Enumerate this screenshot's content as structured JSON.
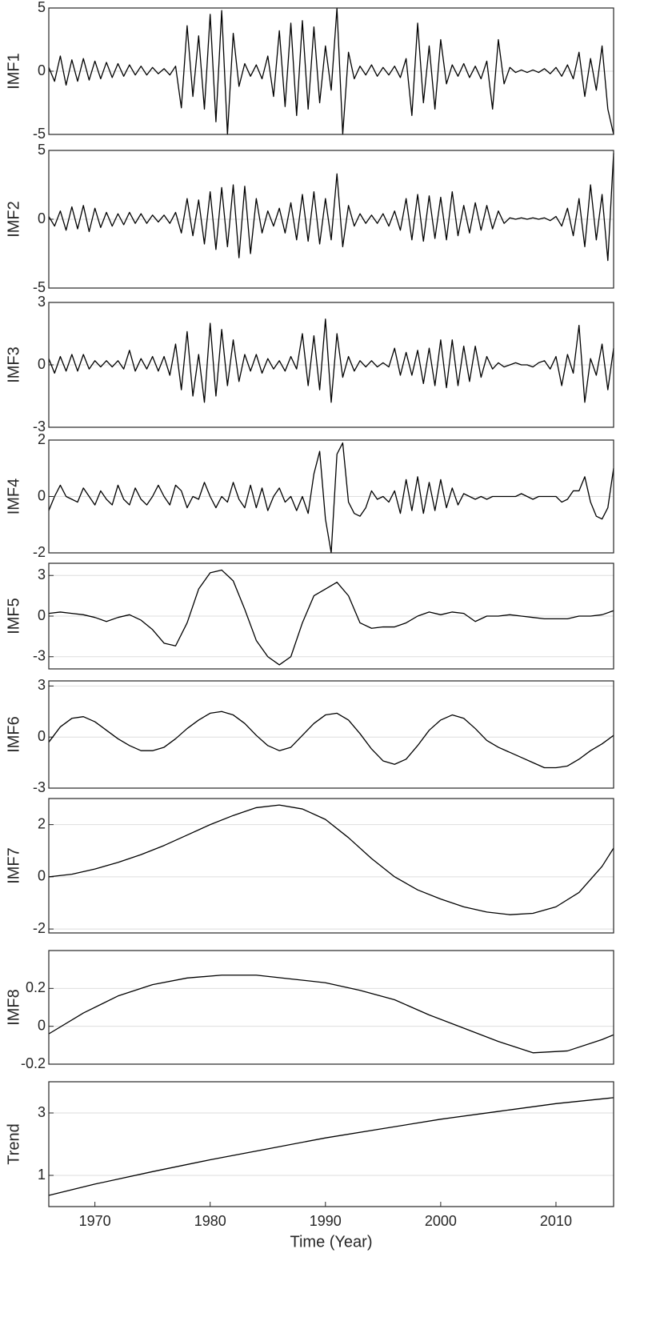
{
  "chart_data": [
    {
      "type": "line",
      "ylabel": "IMF1",
      "color": "#000000",
      "grid": true,
      "xlim": [
        1966,
        2015
      ],
      "ylim": [
        -5,
        5
      ],
      "yticks": [
        -5,
        0,
        5
      ],
      "x": [
        1966,
        1966.5,
        1967,
        1967.5,
        1968,
        1968.5,
        1969,
        1969.5,
        1970,
        1970.5,
        1971,
        1971.5,
        1972,
        1972.5,
        1973,
        1973.5,
        1974,
        1974.5,
        1975,
        1975.5,
        1976,
        1976.5,
        1977,
        1977.5,
        1978,
        1978.5,
        1979,
        1979.5,
        1980,
        1980.5,
        1981,
        1981.5,
        1982,
        1982.5,
        1983,
        1983.5,
        1984,
        1984.5,
        1985,
        1985.5,
        1986,
        1986.5,
        1987,
        1987.5,
        1988,
        1988.5,
        1989,
        1989.5,
        1990,
        1990.5,
        1991,
        1991.5,
        1992,
        1992.5,
        1993,
        1993.5,
        1994,
        1994.5,
        1995,
        1995.5,
        1996,
        1996.5,
        1997,
        1997.5,
        1998,
        1998.5,
        1999,
        1999.5,
        2000,
        2000.5,
        2001,
        2001.5,
        2002,
        2002.5,
        2003,
        2003.5,
        2004,
        2004.5,
        2005,
        2005.5,
        2006,
        2006.5,
        2007,
        2007.5,
        2008,
        2008.5,
        2009,
        2009.5,
        2010,
        2010.5,
        2011,
        2011.5,
        2012,
        2012.5,
        2013,
        2013.5,
        2014,
        2014.5,
        2015
      ],
      "values": [
        0.3,
        -0.8,
        1.2,
        -1.1,
        0.9,
        -0.8,
        1.0,
        -0.7,
        0.8,
        -0.6,
        0.7,
        -0.5,
        0.6,
        -0.4,
        0.5,
        -0.3,
        0.4,
        -0.3,
        0.3,
        -0.2,
        0.2,
        -0.3,
        0.4,
        -2.9,
        3.6,
        -2.0,
        2.8,
        -3.0,
        4.5,
        -4.0,
        4.8,
        -5.0,
        3.0,
        -1.2,
        0.6,
        -0.4,
        0.5,
        -0.6,
        1.2,
        -2.0,
        3.2,
        -2.8,
        3.8,
        -3.5,
        4.0,
        -3.0,
        3.5,
        -2.5,
        2.0,
        -1.5,
        5.0,
        -5.0,
        1.5,
        -0.6,
        0.4,
        -0.3,
        0.5,
        -0.4,
        0.3,
        -0.3,
        0.4,
        -0.5,
        1.0,
        -3.5,
        3.8,
        -2.5,
        2.0,
        -3.0,
        2.5,
        -1.0,
        0.5,
        -0.4,
        0.6,
        -0.5,
        0.4,
        -0.6,
        0.8,
        -3.0,
        2.5,
        -1.0,
        0.3,
        -0.1,
        0.1,
        -0.1,
        0.1,
        -0.1,
        0.2,
        -0.2,
        0.3,
        -0.4,
        0.5,
        -0.6,
        1.5,
        -2.0,
        1.0,
        -1.5,
        2.0,
        -3.0,
        -5.0
      ]
    },
    {
      "type": "line",
      "ylabel": "IMF2",
      "color": "#000000",
      "grid": true,
      "xlim": [
        1966,
        2015
      ],
      "ylim": [
        -5,
        5
      ],
      "yticks": [
        -5,
        0,
        5
      ],
      "x": [
        1966,
        1966.5,
        1967,
        1967.5,
        1968,
        1968.5,
        1969,
        1969.5,
        1970,
        1970.5,
        1971,
        1971.5,
        1972,
        1972.5,
        1973,
        1973.5,
        1974,
        1974.5,
        1975,
        1975.5,
        1976,
        1976.5,
        1977,
        1977.5,
        1978,
        1978.5,
        1979,
        1979.5,
        1980,
        1980.5,
        1981,
        1981.5,
        1982,
        1982.5,
        1983,
        1983.5,
        1984,
        1984.5,
        1985,
        1985.5,
        1986,
        1986.5,
        1987,
        1987.5,
        1988,
        1988.5,
        1989,
        1989.5,
        1990,
        1990.5,
        1991,
        1991.5,
        1992,
        1992.5,
        1993,
        1993.5,
        1994,
        1994.5,
        1995,
        1995.5,
        1996,
        1996.5,
        1997,
        1997.5,
        1998,
        1998.5,
        1999,
        1999.5,
        2000,
        2000.5,
        2001,
        2001.5,
        2002,
        2002.5,
        2003,
        2003.5,
        2004,
        2004.5,
        2005,
        2005.5,
        2006,
        2006.5,
        2007,
        2007.5,
        2008,
        2008.5,
        2009,
        2009.5,
        2010,
        2010.5,
        2011,
        2011.5,
        2012,
        2012.5,
        2013,
        2013.5,
        2014,
        2014.5,
        2015
      ],
      "values": [
        0.2,
        -0.5,
        0.6,
        -0.8,
        0.9,
        -0.7,
        1.0,
        -0.9,
        0.8,
        -0.6,
        0.5,
        -0.5,
        0.4,
        -0.4,
        0.5,
        -0.3,
        0.4,
        -0.3,
        0.3,
        -0.2,
        0.3,
        -0.3,
        0.5,
        -1.0,
        1.5,
        -1.2,
        1.4,
        -1.8,
        2.0,
        -2.2,
        2.3,
        -2.0,
        2.5,
        -2.8,
        2.4,
        -2.5,
        1.5,
        -1.0,
        0.6,
        -0.5,
        0.8,
        -1.0,
        1.2,
        -1.5,
        1.8,
        -1.6,
        2.0,
        -1.8,
        1.5,
        -1.5,
        3.3,
        -2.0,
        1.0,
        -0.5,
        0.4,
        -0.3,
        0.3,
        -0.3,
        0.4,
        -0.5,
        0.6,
        -0.8,
        1.5,
        -1.5,
        1.8,
        -1.6,
        1.7,
        -1.4,
        1.6,
        -1.5,
        2.0,
        -1.2,
        1.0,
        -1.0,
        1.2,
        -0.8,
        1.0,
        -0.7,
        0.6,
        -0.3,
        0.1,
        0.0,
        0.1,
        0.0,
        0.1,
        0.0,
        0.1,
        -0.1,
        0.2,
        -0.5,
        0.8,
        -1.2,
        1.5,
        -2.0,
        2.5,
        -1.5,
        1.8,
        -3.0,
        4.8
      ]
    },
    {
      "type": "line",
      "ylabel": "IMF3",
      "color": "#000000",
      "grid": true,
      "xlim": [
        1966,
        2015
      ],
      "ylim": [
        -3,
        3
      ],
      "yticks": [
        -3,
        0,
        3
      ],
      "x": [
        1966,
        1966.5,
        1967,
        1967.5,
        1968,
        1968.5,
        1969,
        1969.5,
        1970,
        1970.5,
        1971,
        1971.5,
        1972,
        1972.5,
        1973,
        1973.5,
        1974,
        1974.5,
        1975,
        1975.5,
        1976,
        1976.5,
        1977,
        1977.5,
        1978,
        1978.5,
        1979,
        1979.5,
        1980,
        1980.5,
        1981,
        1981.5,
        1982,
        1982.5,
        1983,
        1983.5,
        1984,
        1984.5,
        1985,
        1985.5,
        1986,
        1986.5,
        1987,
        1987.5,
        1988,
        1988.5,
        1989,
        1989.5,
        1990,
        1990.5,
        1991,
        1991.5,
        1992,
        1992.5,
        1993,
        1993.5,
        1994,
        1994.5,
        1995,
        1995.5,
        1996,
        1996.5,
        1997,
        1997.5,
        1998,
        1998.5,
        1999,
        1999.5,
        2000,
        2000.5,
        2001,
        2001.5,
        2002,
        2002.5,
        2003,
        2003.5,
        2004,
        2004.5,
        2005,
        2005.5,
        2006,
        2006.5,
        2007,
        2007.5,
        2008,
        2008.5,
        2009,
        2009.5,
        2010,
        2010.5,
        2011,
        2011.5,
        2012,
        2012.5,
        2013,
        2013.5,
        2014,
        2014.5,
        2015
      ],
      "values": [
        0.3,
        -0.4,
        0.4,
        -0.3,
        0.5,
        -0.3,
        0.5,
        -0.2,
        0.2,
        -0.1,
        0.2,
        -0.1,
        0.2,
        -0.2,
        0.7,
        -0.3,
        0.3,
        -0.2,
        0.4,
        -0.3,
        0.4,
        -0.5,
        1.0,
        -1.2,
        1.6,
        -1.5,
        0.5,
        -1.8,
        2.0,
        -1.5,
        1.7,
        -1.0,
        1.2,
        -0.8,
        0.5,
        -0.3,
        0.5,
        -0.4,
        0.3,
        -0.2,
        0.2,
        -0.3,
        0.4,
        -0.2,
        1.5,
        -1.0,
        1.4,
        -1.2,
        2.2,
        -1.8,
        1.5,
        -0.6,
        0.4,
        -0.3,
        0.2,
        -0.1,
        0.2,
        -0.1,
        0.1,
        -0.1,
        0.8,
        -0.5,
        0.6,
        -0.5,
        0.7,
        -0.9,
        0.8,
        -1.0,
        1.2,
        -1.1,
        1.2,
        -1.0,
        0.9,
        -0.8,
        0.9,
        -0.6,
        0.4,
        -0.2,
        0.1,
        -0.1,
        0.0,
        0.1,
        0.0,
        0.0,
        -0.1,
        0.1,
        0.2,
        -0.2,
        0.4,
        -1.0,
        0.5,
        -0.4,
        1.9,
        -1.8,
        0.3,
        -0.5,
        1.0,
        -1.2,
        0.8
      ]
    },
    {
      "type": "line",
      "ylabel": "IMF4",
      "color": "#000000",
      "grid": true,
      "xlim": [
        1966,
        2015
      ],
      "ylim": [
        -2,
        2
      ],
      "yticks": [
        -2,
        0,
        2
      ],
      "x": [
        1966,
        1966.5,
        1967,
        1967.5,
        1968,
        1968.5,
        1969,
        1969.5,
        1970,
        1970.5,
        1971,
        1971.5,
        1972,
        1972.5,
        1973,
        1973.5,
        1974,
        1974.5,
        1975,
        1975.5,
        1976,
        1976.5,
        1977,
        1977.5,
        1978,
        1978.5,
        1979,
        1979.5,
        1980,
        1980.5,
        1981,
        1981.5,
        1982,
        1982.5,
        1983,
        1983.5,
        1984,
        1984.5,
        1985,
        1985.5,
        1986,
        1986.5,
        1987,
        1987.5,
        1988,
        1988.5,
        1989,
        1989.5,
        1990,
        1990.5,
        1991,
        1991.5,
        1992,
        1992.5,
        1993,
        1993.5,
        1994,
        1994.5,
        1995,
        1995.5,
        1996,
        1996.5,
        1997,
        1997.5,
        1998,
        1998.5,
        1999,
        1999.5,
        2000,
        2000.5,
        2001,
        2001.5,
        2002,
        2002.5,
        2003,
        2003.5,
        2004,
        2004.5,
        2005,
        2005.5,
        2006,
        2006.5,
        2007,
        2007.5,
        2008,
        2008.5,
        2009,
        2009.5,
        2010,
        2010.5,
        2011,
        2011.5,
        2012,
        2012.5,
        2013,
        2013.5,
        2014,
        2014.5,
        2015
      ],
      "values": [
        -0.5,
        0.0,
        0.4,
        0.0,
        -0.1,
        -0.2,
        0.3,
        0.0,
        -0.3,
        0.2,
        -0.1,
        -0.3,
        0.4,
        -0.1,
        -0.3,
        0.3,
        -0.1,
        -0.3,
        0.0,
        0.4,
        0.0,
        -0.3,
        0.4,
        0.2,
        -0.4,
        0.0,
        -0.1,
        0.5,
        0.0,
        -0.4,
        0.0,
        -0.2,
        0.5,
        -0.1,
        -0.4,
        0.4,
        -0.4,
        0.3,
        -0.5,
        0.0,
        0.3,
        -0.2,
        0.0,
        -0.5,
        0.0,
        -0.6,
        0.8,
        1.6,
        -0.8,
        -2.0,
        1.5,
        1.9,
        -0.2,
        -0.6,
        -0.7,
        -0.4,
        0.2,
        -0.1,
        0.0,
        -0.2,
        0.2,
        -0.6,
        0.6,
        -0.5,
        0.7,
        -0.6,
        0.5,
        -0.5,
        0.6,
        -0.4,
        0.3,
        -0.3,
        0.1,
        0.0,
        -0.1,
        0.0,
        -0.1,
        0.0,
        0.0,
        0.0,
        0.0,
        0.0,
        0.1,
        0.0,
        -0.1,
        0.0,
        0.0,
        0.0,
        0.0,
        -0.2,
        -0.1,
        0.2,
        0.2,
        0.7,
        -0.2,
        -0.7,
        -0.8,
        -0.4,
        1.0
      ]
    },
    {
      "type": "line",
      "ylabel": "IMF5",
      "color": "#000000",
      "grid": true,
      "xlim": [
        1966,
        2015
      ],
      "ylim": [
        -3.9,
        3.9
      ],
      "yticks": [
        -3,
        0,
        3
      ],
      "x": [
        1966,
        1967,
        1968,
        1969,
        1970,
        1971,
        1972,
        1973,
        1974,
        1975,
        1976,
        1977,
        1978,
        1979,
        1980,
        1981,
        1982,
        1983,
        1984,
        1985,
        1986,
        1987,
        1988,
        1989,
        1990,
        1991,
        1992,
        1993,
        1994,
        1995,
        1996,
        1997,
        1998,
        1999,
        2000,
        2001,
        2002,
        2003,
        2004,
        2005,
        2006,
        2007,
        2008,
        2009,
        2010,
        2011,
        2012,
        2013,
        2014,
        2015
      ],
      "values": [
        0.2,
        0.3,
        0.2,
        0.1,
        -0.1,
        -0.4,
        -0.1,
        0.1,
        -0.3,
        -1.0,
        -2.0,
        -2.2,
        -0.5,
        2.0,
        3.2,
        3.4,
        2.6,
        0.5,
        -1.8,
        -3.0,
        -3.6,
        -3.0,
        -0.5,
        1.5,
        2.0,
        2.5,
        1.5,
        -0.5,
        -0.9,
        -0.8,
        -0.8,
        -0.5,
        0.0,
        0.3,
        0.1,
        0.3,
        0.2,
        -0.4,
        0.0,
        0.0,
        0.1,
        0.0,
        -0.1,
        -0.2,
        -0.2,
        -0.2,
        0.0,
        0.0,
        0.1,
        0.4
      ]
    },
    {
      "type": "line",
      "ylabel": "IMF6",
      "color": "#000000",
      "grid": true,
      "xlim": [
        1966,
        2015
      ],
      "ylim": [
        -3,
        3.3
      ],
      "yticks": [
        -3,
        0,
        3
      ],
      "x": [
        1966,
        1967,
        1968,
        1969,
        1970,
        1971,
        1972,
        1973,
        1974,
        1975,
        1976,
        1977,
        1978,
        1979,
        1980,
        1981,
        1982,
        1983,
        1984,
        1985,
        1986,
        1987,
        1988,
        1989,
        1990,
        1991,
        1992,
        1993,
        1994,
        1995,
        1996,
        1997,
        1998,
        1999,
        2000,
        2001,
        2002,
        2003,
        2004,
        2005,
        2006,
        2007,
        2008,
        2009,
        2010,
        2011,
        2012,
        2013,
        2014,
        2015
      ],
      "values": [
        -0.3,
        0.6,
        1.1,
        1.2,
        0.9,
        0.4,
        -0.1,
        -0.5,
        -0.8,
        -0.8,
        -0.6,
        -0.1,
        0.5,
        1.0,
        1.4,
        1.5,
        1.3,
        0.8,
        0.1,
        -0.5,
        -0.8,
        -0.6,
        0.1,
        0.8,
        1.3,
        1.4,
        1.0,
        0.2,
        -0.7,
        -1.4,
        -1.6,
        -1.3,
        -0.5,
        0.4,
        1.0,
        1.3,
        1.1,
        0.5,
        -0.2,
        -0.6,
        -0.9,
        -1.2,
        -1.5,
        -1.8,
        -1.8,
        -1.7,
        -1.3,
        -0.8,
        -0.4,
        0.1
      ]
    },
    {
      "type": "line",
      "ylabel": "IMF7",
      "color": "#000000",
      "grid": true,
      "xlim": [
        1966,
        2015
      ],
      "ylim": [
        -2.15,
        3.0
      ],
      "yticks": [
        -2,
        0,
        2
      ],
      "x": [
        1966,
        1968,
        1970,
        1972,
        1974,
        1976,
        1978,
        1980,
        1982,
        1984,
        1986,
        1988,
        1990,
        1992,
        1994,
        1996,
        1998,
        2000,
        2002,
        2004,
        2006,
        2008,
        2010,
        2012,
        2014,
        2015
      ],
      "values": [
        0.0,
        0.1,
        0.3,
        0.55,
        0.85,
        1.2,
        1.6,
        2.0,
        2.35,
        2.65,
        2.75,
        2.6,
        2.2,
        1.5,
        0.7,
        0.0,
        -0.5,
        -0.85,
        -1.15,
        -1.35,
        -1.45,
        -1.4,
        -1.15,
        -0.6,
        0.4,
        1.1
      ]
    },
    {
      "type": "line",
      "ylabel": "IMF8",
      "color": "#000000",
      "grid": true,
      "xlim": [
        1966,
        2015
      ],
      "ylim": [
        -0.2,
        0.4
      ],
      "yticks": [
        -0.2,
        0,
        0.2
      ],
      "x": [
        1966,
        1969,
        1972,
        1975,
        1978,
        1981,
        1984,
        1987,
        1990,
        1993,
        1996,
        1999,
        2002,
        2005,
        2008,
        2011,
        2014,
        2015
      ],
      "values": [
        -0.04,
        0.07,
        0.16,
        0.22,
        0.255,
        0.27,
        0.27,
        0.25,
        0.23,
        0.19,
        0.14,
        0.06,
        -0.01,
        -0.08,
        -0.14,
        -0.13,
        -0.07,
        -0.045
      ]
    },
    {
      "type": "line",
      "ylabel": "Trend",
      "xlabel": "Time (Year)",
      "color": "#000000",
      "grid": true,
      "xlim": [
        1966,
        2015
      ],
      "ylim": [
        0,
        4
      ],
      "yticks": [
        1,
        3
      ],
      "xticks": [
        1970,
        1980,
        1990,
        2000,
        2010
      ],
      "x": [
        1966,
        1970,
        1975,
        1980,
        1985,
        1990,
        1995,
        2000,
        2005,
        2010,
        2015
      ],
      "values": [
        0.36,
        0.72,
        1.12,
        1.5,
        1.85,
        2.2,
        2.5,
        2.8,
        3.05,
        3.3,
        3.49
      ]
    }
  ]
}
